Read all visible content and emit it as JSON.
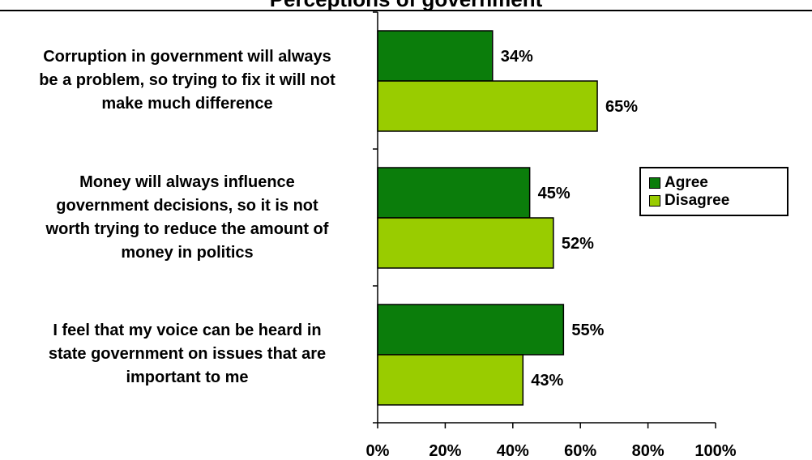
{
  "title": "Perceptions of government",
  "chart_data": {
    "type": "bar",
    "orientation": "horizontal",
    "categories": [
      "Corruption in government will always be a problem, so trying to fix it will not make much difference",
      "Money will always influence government decisions, so it is not worth trying to reduce the amount of money in politics",
      "I feel that my voice can be heard in state government on issues that are important to me"
    ],
    "category_lines": [
      [
        "Corruption in government will always",
        "be a problem, so trying to fix it will not",
        "make much difference"
      ],
      [
        "Money will always influence",
        "government decisions, so it is not",
        "worth trying to reduce the amount of",
        "money in politics"
      ],
      [
        "I feel that my voice can be heard in",
        "state government on issues that are",
        "important to me"
      ]
    ],
    "series": [
      {
        "name": "Agree",
        "values": [
          34,
          45,
          55
        ],
        "labels": [
          "34%",
          "45%",
          "55%"
        ],
        "color": "#0b7d0b"
      },
      {
        "name": "Disagree",
        "values": [
          65,
          52,
          43
        ],
        "labels": [
          "65%",
          "52%",
          "43%"
        ],
        "color": "#99cc00"
      }
    ],
    "xlim": [
      0,
      100
    ],
    "xticks": [
      0,
      20,
      40,
      60,
      80,
      100
    ],
    "xtick_labels": [
      "0%",
      "20%",
      "40%",
      "60%",
      "80%",
      "100%"
    ],
    "grid": false,
    "legend_position": "right"
  }
}
